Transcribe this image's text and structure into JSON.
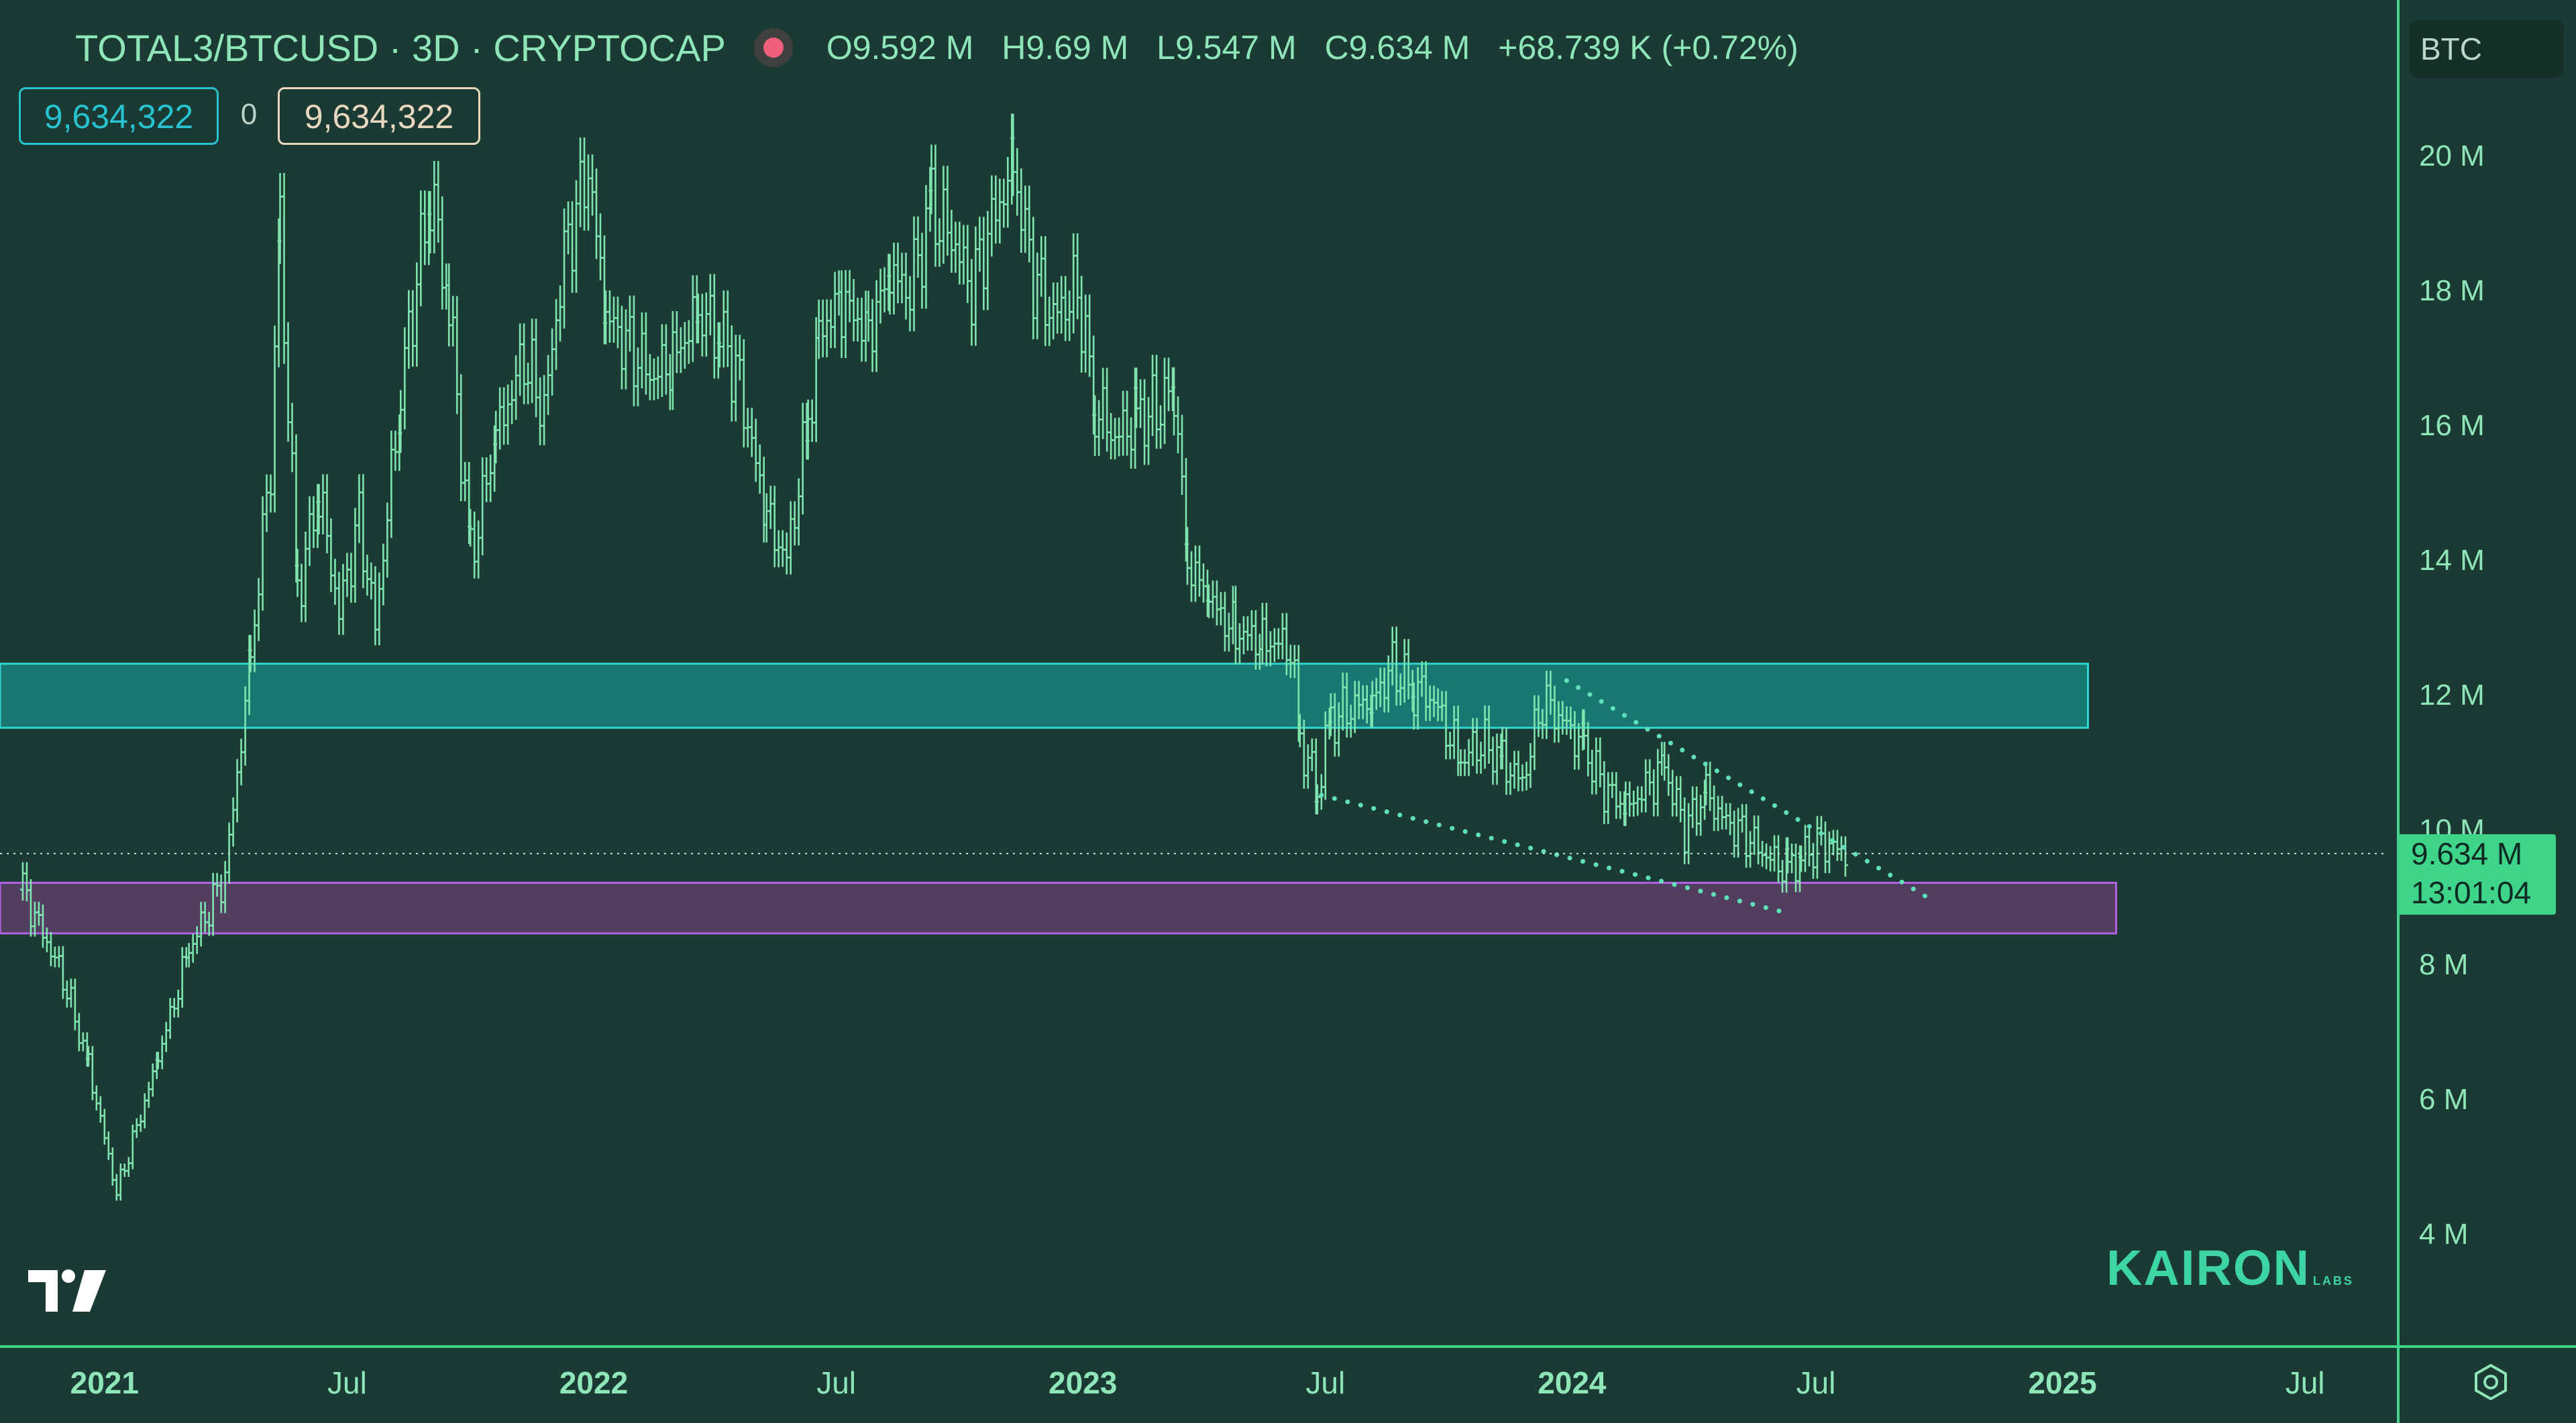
{
  "header": {
    "symbol": "TOTAL3/BTCUSD · 3D · CRYPTOCAP",
    "open": "O9.592 M",
    "high": "H9.69 M",
    "low": "L9.547 M",
    "close": "C9.634 M",
    "change": "+68.739 K (+0.72%)"
  },
  "order_boxes": {
    "buy": "9,634,322",
    "spread": "0",
    "sell": "9,634,322"
  },
  "currency_badge": "BTC",
  "last_price": {
    "value": "9.634 M",
    "countdown": "13:01:04"
  },
  "watermark": {
    "brand": "KAIRON",
    "sub": "LABS"
  },
  "colors": {
    "background": "#1b3a34",
    "candles": "#7fe3ae",
    "resistance_zone": "#1a8c85",
    "support_zone": "#5a3f6a",
    "trendline": "#5fe0b8",
    "axis_text": "#8ee6b8"
  },
  "icons": {
    "tradingview_logo": "tradingview-logo-icon",
    "settings": "gear-icon"
  },
  "chart_data": {
    "type": "bar",
    "subtype": "ohlc",
    "series": [
      {
        "name": "TOTAL3/BTCUSD",
        "points": [
          [
            "2020-11-01",
            9.1
          ],
          [
            "2020-12-01",
            7.8
          ],
          [
            "2020-12-20",
            6.5
          ],
          [
            "2021-01-10",
            4.6
          ],
          [
            "2021-02-10",
            6.6
          ],
          [
            "2021-03-05",
            8.2
          ],
          [
            "2021-04-01",
            9.3
          ],
          [
            "2021-04-20",
            12.5
          ],
          [
            "2021-05-05",
            15.5
          ],
          [
            "2021-05-12",
            18.8
          ],
          [
            "2021-05-25",
            13.5
          ],
          [
            "2021-06-10",
            15.0
          ],
          [
            "2021-06-25",
            13.2
          ],
          [
            "2021-07-10",
            14.6
          ],
          [
            "2021-07-22",
            13.0
          ],
          [
            "2021-08-10",
            16.5
          ],
          [
            "2021-09-01",
            19.5
          ],
          [
            "2021-09-15",
            17.8
          ],
          [
            "2021-10-01",
            14.0
          ],
          [
            "2021-10-20",
            15.8
          ],
          [
            "2021-11-10",
            17.0
          ],
          [
            "2021-11-25",
            16.2
          ],
          [
            "2021-12-10",
            18.5
          ],
          [
            "2021-12-28",
            19.8
          ],
          [
            "2022-01-10",
            17.6
          ],
          [
            "2022-01-25",
            17.2
          ],
          [
            "2022-02-15",
            16.7
          ],
          [
            "2022-03-01",
            17.0
          ],
          [
            "2022-03-20",
            17.6
          ],
          [
            "2022-04-05",
            17.4
          ],
          [
            "2022-04-20",
            16.6
          ],
          [
            "2022-05-10",
            14.6
          ],
          [
            "2022-05-25",
            14.0
          ],
          [
            "2022-06-10",
            16.0
          ],
          [
            "2022-06-18",
            17.4
          ],
          [
            "2022-07-05",
            17.8
          ],
          [
            "2022-07-25",
            17.4
          ],
          [
            "2022-08-10",
            18.2
          ],
          [
            "2022-08-25",
            18.0
          ],
          [
            "2022-09-10",
            19.2
          ],
          [
            "2022-09-25",
            18.8
          ],
          [
            "2022-10-10",
            18.0
          ],
          [
            "2022-10-25",
            19.0
          ],
          [
            "2022-11-10",
            19.8
          ],
          [
            "2022-11-25",
            18.2
          ],
          [
            "2022-12-10",
            17.6
          ],
          [
            "2022-12-28",
            18.0
          ],
          [
            "2023-01-10",
            16.3
          ],
          [
            "2023-01-25",
            15.8
          ],
          [
            "2023-02-10",
            16.1
          ],
          [
            "2023-02-25",
            16.2
          ],
          [
            "2023-03-10",
            16.6
          ],
          [
            "2023-03-20",
            14.0
          ],
          [
            "2023-04-05",
            13.4
          ],
          [
            "2023-04-25",
            12.9
          ],
          [
            "2023-05-15",
            12.8
          ],
          [
            "2023-06-05",
            12.7
          ],
          [
            "2023-06-12",
            11.3
          ],
          [
            "2023-06-25",
            10.6
          ],
          [
            "2023-07-05",
            11.6
          ],
          [
            "2023-07-20",
            11.8
          ],
          [
            "2023-08-05",
            11.9
          ],
          [
            "2023-08-20",
            12.4
          ],
          [
            "2023-09-05",
            12.1
          ],
          [
            "2023-09-20",
            11.9
          ],
          [
            "2023-10-10",
            11.0
          ],
          [
            "2023-10-25",
            11.3
          ],
          [
            "2023-11-10",
            11.0
          ],
          [
            "2023-11-25",
            10.7
          ],
          [
            "2023-12-10",
            11.9
          ],
          [
            "2023-12-25",
            11.6
          ],
          [
            "2024-01-10",
            11.2
          ],
          [
            "2024-01-25",
            10.6
          ],
          [
            "2024-02-10",
            10.3
          ],
          [
            "2024-02-25",
            10.6
          ],
          [
            "2024-03-10",
            10.9
          ],
          [
            "2024-03-25",
            10.0
          ],
          [
            "2024-04-10",
            10.5
          ],
          [
            "2024-04-25",
            10.1
          ],
          [
            "2024-05-10",
            9.9
          ],
          [
            "2024-05-25",
            9.6
          ],
          [
            "2024-06-10",
            9.4
          ],
          [
            "2024-06-20",
            9.6
          ],
          [
            "2024-07-05",
            9.8
          ],
          [
            "2024-07-25",
            9.63
          ]
        ]
      }
    ],
    "ylabel": "BTC",
    "ylim": [
      2.5,
      21.5
    ],
    "xlim": [
      "2020-10-15",
      "2025-09-01"
    ],
    "yticks": [
      {
        "v": 20,
        "label": "20 M"
      },
      {
        "v": 18,
        "label": "18 M"
      },
      {
        "v": 16,
        "label": "16 M"
      },
      {
        "v": 14,
        "label": "14 M"
      },
      {
        "v": 12,
        "label": "12 M"
      },
      {
        "v": 10,
        "label": "10 M"
      },
      {
        "v": 8,
        "label": "8 M"
      },
      {
        "v": 6,
        "label": "6 M"
      },
      {
        "v": 4,
        "label": "4 M"
      }
    ],
    "xticks": [
      {
        "d": "2021-01-01",
        "label": "2021",
        "bold": true
      },
      {
        "d": "2021-07-01",
        "label": "Jul"
      },
      {
        "d": "2022-01-01",
        "label": "2022",
        "bold": true
      },
      {
        "d": "2022-07-01",
        "label": "Jul"
      },
      {
        "d": "2023-01-01",
        "label": "2023",
        "bold": true
      },
      {
        "d": "2023-07-01",
        "label": "Jul"
      },
      {
        "d": "2024-01-01",
        "label": "2024",
        "bold": true
      },
      {
        "d": "2024-07-01",
        "label": "Jul"
      },
      {
        "d": "2025-01-01",
        "label": "2025",
        "bold": true
      },
      {
        "d": "2025-07-01",
        "label": "Jul"
      }
    ],
    "zones": [
      {
        "name": "resistance-zone",
        "from": "2020-10-15",
        "to": "2025-01-20",
        "low": 11.5,
        "high": 12.45
      },
      {
        "name": "support-zone",
        "from": "2020-10-15",
        "to": "2025-02-10",
        "low": 8.45,
        "high": 9.2
      }
    ],
    "trendlines": [
      {
        "name": "upper-trendline",
        "from": [
          "2023-12-28",
          12.2
        ],
        "to": [
          "2024-09-25",
          8.95
        ]
      },
      {
        "name": "lower-trendline",
        "from": [
          "2023-06-28",
          10.5
        ],
        "to": [
          "2024-06-10",
          8.75
        ]
      }
    ],
    "last_price": 9.634,
    "grid": false
  }
}
